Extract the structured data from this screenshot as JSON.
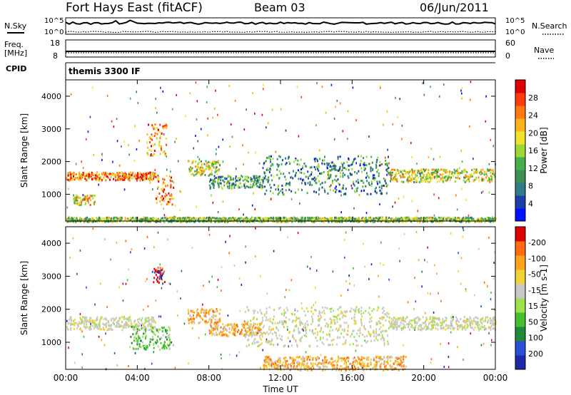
{
  "header": {
    "station": "Fort Hays East (fitACF)",
    "beam": "Beam 03",
    "date": "06/Jun/2011"
  },
  "strip1": {
    "left_label": "N.Sky",
    "right_label": "N.Search",
    "ticks_left": [
      "10^5",
      "10^0"
    ],
    "ticks_right": [
      "10^5",
      "10^0"
    ]
  },
  "strip2": {
    "left_label": "Freq.",
    "left_unit": "[MHz]",
    "right_label": "Nave",
    "ticks_left": [
      "18",
      "8"
    ],
    "ticks_right": [
      "60",
      "0"
    ]
  },
  "strip3": {
    "left_label": "CPID",
    "text": "themis 3300 IF"
  },
  "xaxis": {
    "label": "Time UT",
    "ticks": [
      "00:00",
      "04:00",
      "08:00",
      "12:00",
      "16:00",
      "20:00",
      "00:00"
    ]
  },
  "chart_data": [
    {
      "type": "heatmap",
      "panel": "power",
      "ylabel": "Slant Range [km]",
      "yticks": [
        "1000",
        "2000",
        "3000",
        "4000"
      ],
      "ylim": [
        180,
        4500
      ],
      "xlim_hours": [
        0,
        24
      ],
      "colorbar": {
        "label": "Power [dB]",
        "ticks": [
          "4",
          "8",
          "12",
          "16",
          "20",
          "24",
          "28"
        ],
        "colors": [
          "#0010ff",
          "#1c3fa8",
          "#2f7d8a",
          "#3f8f55",
          "#48b04a",
          "#9fd836",
          "#f1e22e",
          "#ffb31a",
          "#ff7a12",
          "#ff3b0f",
          "#e00000"
        ]
      },
      "bands": [
        {
          "t": [
            0.0,
            5.0
          ],
          "r": [
            1450,
            1700
          ],
          "level": 0.75
        },
        {
          "t": [
            5.0,
            6.0
          ],
          "r": [
            700,
            1600
          ],
          "level": 0.8
        },
        {
          "t": [
            6.8,
            8.6
          ],
          "r": [
            1600,
            2050
          ],
          "level": 0.55
        },
        {
          "t": [
            8.0,
            11.0
          ],
          "r": [
            1200,
            1600
          ],
          "level": 0.35
        },
        {
          "t": [
            11.0,
            18.0
          ],
          "r": [
            1000,
            2200
          ],
          "level": 0.3
        },
        {
          "t": [
            18.0,
            24.0
          ],
          "r": [
            1400,
            1800
          ],
          "level": 0.55
        },
        {
          "t": [
            0.4,
            1.6
          ],
          "r": [
            700,
            1000
          ],
          "level": 0.6
        },
        {
          "t": [
            4.5,
            5.6
          ],
          "r": [
            2200,
            3200
          ],
          "level": 0.7
        },
        {
          "t": [
            0.0,
            24.0
          ],
          "r": [
            180,
            320
          ],
          "level": 0.45
        }
      ]
    },
    {
      "type": "heatmap",
      "panel": "velocity",
      "ylabel": "Slant Range [km]",
      "yticks": [
        "1000",
        "2000",
        "3000",
        "4000"
      ],
      "ylim": [
        180,
        4500
      ],
      "xlim_hours": [
        0,
        24
      ],
      "colorbar": {
        "label": "Velocity [m s-1]",
        "ticks": [
          "200",
          "100",
          "50",
          "15",
          "-15",
          "-50",
          "-100",
          "-200"
        ],
        "colors": [
          "#1a2aa8",
          "#2950d8",
          "#1e8a3a",
          "#46c033",
          "#9de24a",
          "#c8c8c8",
          "#f0d23a",
          "#ffa51c",
          "#ff6c14",
          "#e00000"
        ]
      },
      "bands": [
        {
          "t": [
            0.0,
            5.0
          ],
          "r": [
            1400,
            1800
          ],
          "level": "gray"
        },
        {
          "t": [
            3.6,
            5.8
          ],
          "r": [
            800,
            1500
          ],
          "level": "green"
        },
        {
          "t": [
            6.8,
            8.6
          ],
          "r": [
            1600,
            2050
          ],
          "level": "orange"
        },
        {
          "t": [
            8.0,
            11.0
          ],
          "r": [
            1200,
            1600
          ],
          "level": "orange"
        },
        {
          "t": [
            10.0,
            18.0
          ],
          "r": [
            900,
            2100
          ],
          "level": "gray"
        },
        {
          "t": [
            18.0,
            24.0
          ],
          "r": [
            1400,
            1800
          ],
          "level": "gray"
        },
        {
          "t": [
            4.8,
            5.5
          ],
          "r": [
            2800,
            3300
          ],
          "level": "red"
        },
        {
          "t": [
            11.0,
            19.0
          ],
          "r": [
            180,
            600
          ],
          "level": "orange"
        }
      ]
    }
  ]
}
